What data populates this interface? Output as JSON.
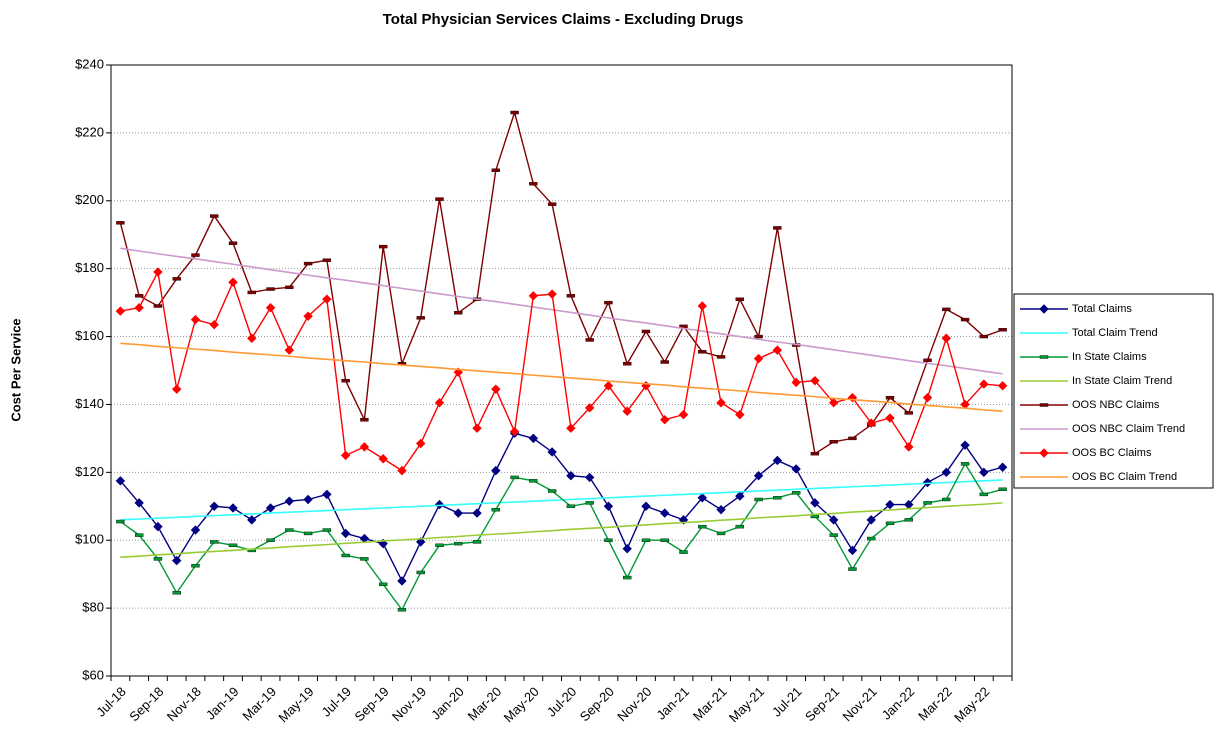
{
  "chart_data": {
    "type": "line",
    "title": "Total Physician Services Claims - Excluding Drugs",
    "y_label": "Cost Per Service",
    "categories": [
      "Jul-18",
      null,
      "Sep-18",
      null,
      "Nov-18",
      null,
      "Jan-19",
      null,
      "Mar-19",
      null,
      "May-19",
      null,
      "Jul-19",
      null,
      "Sep-19",
      null,
      "Nov-19",
      null,
      "Jan-20",
      null,
      "Mar-20",
      null,
      "May-20",
      null,
      "Jul-20",
      null,
      "Sep-20",
      null,
      "Nov-20",
      null,
      "Jan-21",
      null,
      "Mar-21",
      null,
      "May-21",
      null,
      "Jul-21",
      null,
      "Sep-21",
      null,
      "Nov-21",
      null,
      "Jan-22",
      null,
      "Mar-22",
      null,
      "May-22",
      null
    ],
    "ylim": [
      60,
      240
    ],
    "yticks": [
      {
        "value": 60,
        "label": "$60"
      },
      {
        "value": 80,
        "label": "$80"
      },
      {
        "value": 100,
        "label": "$100"
      },
      {
        "value": 120,
        "label": "$120"
      },
      {
        "value": 140,
        "label": "$140"
      },
      {
        "value": 160,
        "label": "$160"
      },
      {
        "value": 180,
        "label": "$180"
      },
      {
        "value": 200,
        "label": "$200"
      },
      {
        "value": 220,
        "label": "$220"
      },
      {
        "value": 240,
        "label": "$240"
      }
    ],
    "grid": true,
    "legend": "right",
    "series": [
      {
        "name": "Total Claims",
        "color": "#000080",
        "marker": "diamond",
        "values": [
          117.5,
          111,
          104,
          94,
          103,
          110,
          109.5,
          106,
          109.5,
          111.5,
          112,
          113.5,
          102,
          100.5,
          99,
          88,
          99.5,
          110.5,
          108,
          108,
          120.5,
          131.5,
          130,
          126,
          119,
          118.5,
          110,
          97.5,
          110,
          108,
          106,
          112.5,
          109,
          113,
          119,
          123.5,
          121,
          111,
          106,
          97,
          106,
          110.5,
          110.5,
          117,
          120,
          128,
          120,
          121.5
        ]
      },
      {
        "name": "Total Claim Trend",
        "color": "#33ffff",
        "marker": "none",
        "values": [
          106,
          106.25,
          106.5,
          106.75,
          107,
          107.25,
          107.5,
          107.75,
          108,
          108.25,
          108.5,
          108.75,
          109,
          109.25,
          109.5,
          109.75,
          110,
          110.25,
          110.5,
          110.75,
          111,
          111.25,
          111.5,
          111.75,
          112,
          112.25,
          112.5,
          112.75,
          113,
          113.25,
          113.5,
          113.75,
          114,
          114.25,
          114.5,
          114.75,
          115,
          115.25,
          115.5,
          115.75,
          116,
          116.25,
          116.5,
          116.75,
          117,
          117.25,
          117.5,
          117.75
        ]
      },
      {
        "name": "In State Claims",
        "color": "#009933",
        "marker": "dash",
        "values": [
          105.5,
          101.5,
          94.5,
          84.5,
          92.5,
          99.5,
          98.5,
          97,
          100,
          103,
          102,
          103,
          95.5,
          94.5,
          87,
          79.5,
          90.5,
          98.5,
          99,
          99.5,
          109,
          118.5,
          117.5,
          114.5,
          110,
          111,
          100,
          89,
          100,
          100,
          96.5,
          104,
          102,
          104,
          112,
          112.5,
          114,
          107,
          101.5,
          91.5,
          100.5,
          105,
          106,
          111,
          112,
          122.5,
          113.5,
          115
        ]
      },
      {
        "name": "In State Claim Trend",
        "color": "#99cc33",
        "marker": "none",
        "values": [
          95,
          95.3,
          95.7,
          96,
          96.4,
          96.7,
          97,
          97.4,
          97.7,
          98.1,
          98.4,
          98.7,
          99.1,
          99.4,
          99.8,
          100.1,
          100.4,
          100.8,
          101.1,
          101.5,
          101.8,
          102.1,
          102.5,
          102.8,
          103.2,
          103.5,
          103.8,
          104.2,
          104.5,
          104.9,
          105.2,
          105.5,
          105.9,
          106.2,
          106.6,
          106.9,
          107.2,
          107.6,
          107.9,
          108.3,
          108.6,
          108.9,
          109.3,
          109.6,
          110,
          110.3,
          110.6,
          111
        ]
      },
      {
        "name": "OOS NBC Claims",
        "color": "#800000",
        "marker": "dash",
        "values": [
          193.5,
          172,
          169,
          177,
          184,
          195.5,
          187.5,
          173,
          174,
          174.5,
          181.5,
          182.5,
          147,
          135.5,
          186.5,
          152,
          165.5,
          200.5,
          167,
          171,
          209,
          226,
          205,
          199,
          172,
          159,
          170,
          152,
          161.5,
          152.5,
          163,
          155.5,
          154,
          171,
          160,
          192,
          157.5,
          125.5,
          129,
          130,
          134,
          142,
          137.5,
          153,
          168,
          165,
          160,
          162
        ]
      },
      {
        "name": "OOS NBC Claim Trend",
        "color": "#cc99cc",
        "marker": "none",
        "values": [
          186,
          185.2,
          184.4,
          183.6,
          182.9,
          182.1,
          181.3,
          180.5,
          179.7,
          178.9,
          178.1,
          177.3,
          176.6,
          175.8,
          175,
          174.2,
          173.4,
          172.6,
          171.8,
          171,
          170.3,
          169.5,
          168.7,
          167.9,
          167.1,
          166.3,
          165.5,
          164.7,
          164,
          163.2,
          162.4,
          161.6,
          160.8,
          160,
          159.2,
          158.4,
          157.7,
          156.9,
          156.1,
          155.3,
          154.5,
          153.7,
          152.9,
          152.1,
          151.4,
          150.6,
          149.8,
          149
        ]
      },
      {
        "name": "OOS BC Claims",
        "color": "#ff0000",
        "marker": "diamond",
        "values": [
          167.5,
          168.5,
          179,
          144.5,
          165,
          163.5,
          176,
          159.5,
          168.5,
          156,
          166,
          171,
          125,
          127.5,
          124,
          120.5,
          128.5,
          140.5,
          149.5,
          133,
          144.5,
          132,
          172,
          172.5,
          133,
          139,
          145.5,
          138,
          145.5,
          135.5,
          137,
          169,
          140.5,
          137,
          153.5,
          156,
          146.5,
          147,
          140.5,
          142,
          134.5,
          136,
          127.5,
          142,
          159.5,
          140,
          146,
          145.5
        ]
      },
      {
        "name": "OOS BC Claim Trend",
        "color": "#ff9933",
        "marker": "none",
        "values": [
          158,
          157.6,
          157.1,
          156.7,
          156.3,
          155.9,
          155.4,
          155,
          154.6,
          154.2,
          153.7,
          153.3,
          152.9,
          152.5,
          152,
          151.6,
          151.2,
          150.8,
          150.3,
          149.9,
          149.5,
          149.1,
          148.6,
          148.2,
          147.8,
          147.4,
          146.9,
          146.5,
          146.1,
          145.7,
          145.2,
          144.8,
          144.4,
          144,
          143.5,
          143.1,
          142.7,
          142.3,
          141.8,
          141.4,
          141,
          140.6,
          140.1,
          139.7,
          139.3,
          138.9,
          138.4,
          138
        ]
      }
    ]
  }
}
